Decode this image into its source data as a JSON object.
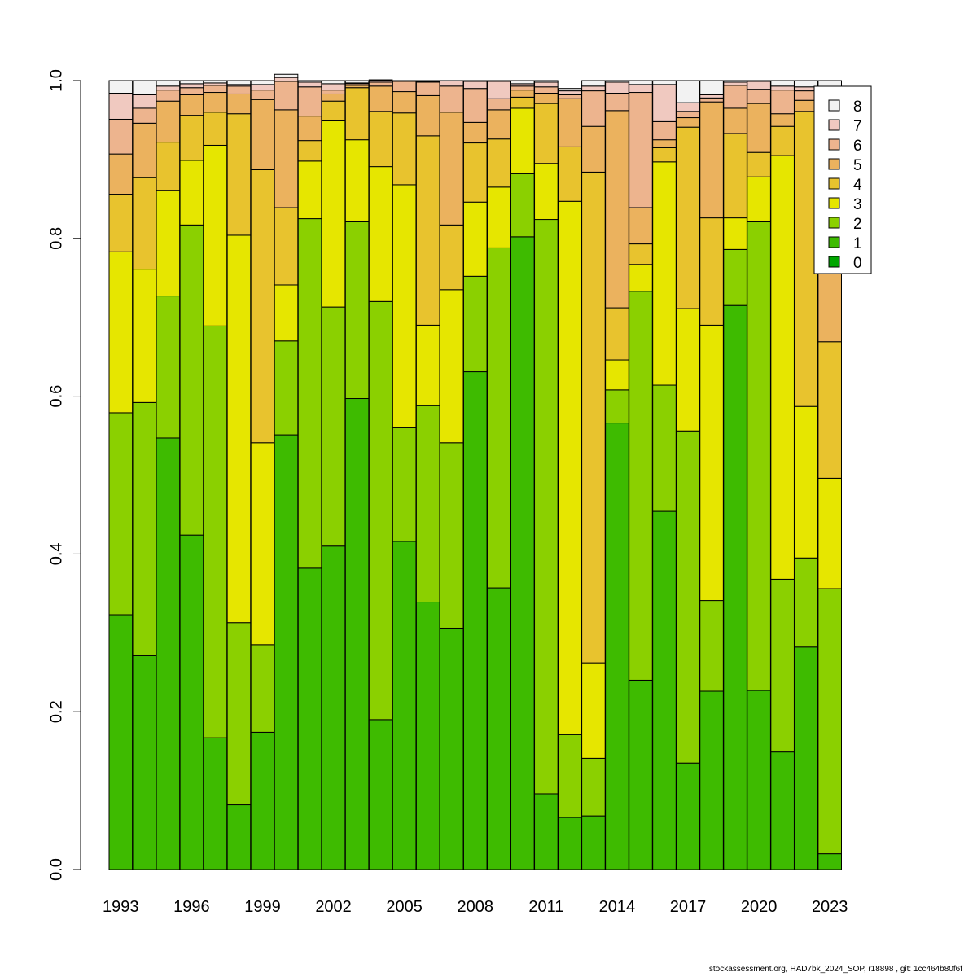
{
  "chart_data": {
    "type": "bar",
    "stacked": true,
    "x": [
      1993,
      1994,
      1995,
      1996,
      1997,
      1998,
      1999,
      2000,
      2001,
      2002,
      2003,
      2004,
      2005,
      2006,
      2007,
      2008,
      2009,
      2010,
      2011,
      2012,
      2013,
      2014,
      2015,
      2016,
      2017,
      2018,
      2019,
      2020,
      2021,
      2022,
      2023
    ],
    "x_tick_labels": [
      "1993",
      "1996",
      "1999",
      "2002",
      "2005",
      "2008",
      "2011",
      "2014",
      "2017",
      "2020",
      "2023"
    ],
    "ylim": [
      0,
      1
    ],
    "y_tick_labels": [
      "0.0",
      "0.2",
      "0.4",
      "0.6",
      "0.8",
      "1.0"
    ],
    "grid": false,
    "legend_position": "top-right",
    "series": [
      {
        "name": "0",
        "color": "#00A600",
        "values": [
          0,
          0,
          0,
          0,
          0,
          0,
          0,
          0,
          0,
          0,
          0,
          0,
          0,
          0,
          0,
          0,
          0,
          0,
          0,
          0,
          0,
          0,
          0,
          0,
          0,
          0,
          0,
          0,
          0,
          0,
          0
        ]
      },
      {
        "name": "1",
        "color": "#3EBB00",
        "values": [
          0.323,
          0.271,
          0.547,
          0.424,
          0.167,
          0.082,
          0.174,
          0.551,
          0.382,
          0.41,
          0.597,
          0.19,
          0.416,
          0.339,
          0.306,
          0.631,
          0.357,
          0.802,
          0.096,
          0.066,
          0.068,
          0.566,
          0.24,
          0.454,
          0.135,
          0.226,
          0.715,
          0.227,
          0.149,
          0.282,
          0.02
        ]
      },
      {
        "name": "2",
        "color": "#8BD000",
        "values": [
          0.256,
          0.321,
          0.18,
          0.393,
          0.522,
          0.231,
          0.111,
          0.119,
          0.443,
          0.303,
          0.224,
          0.53,
          0.144,
          0.249,
          0.235,
          0.121,
          0.431,
          0.08,
          0.728,
          0.105,
          0.073,
          0.042,
          0.493,
          0.16,
          0.421,
          0.115,
          0.071,
          0.594,
          0.219,
          0.113,
          0.336
        ]
      },
      {
        "name": "3",
        "color": "#E6E600",
        "values": [
          0.204,
          0.169,
          0.134,
          0.082,
          0.229,
          0.491,
          0.256,
          0.071,
          0.073,
          0.236,
          0.104,
          0.171,
          0.308,
          0.102,
          0.194,
          0.094,
          0.077,
          0.083,
          0.071,
          0.676,
          0.121,
          0.038,
          0.034,
          0.283,
          0.155,
          0.349,
          0.04,
          0.057,
          0.537,
          0.192,
          0.14
        ]
      },
      {
        "name": "4",
        "color": "#E8C32E",
        "values": [
          0.073,
          0.116,
          0.061,
          0.057,
          0.042,
          0.154,
          0.346,
          0.098,
          0.026,
          0.025,
          0.066,
          0.07,
          0.091,
          0.24,
          0.082,
          0.075,
          0.061,
          0.014,
          0.076,
          0.069,
          0.622,
          0.066,
          0.026,
          0.018,
          0.23,
          0.136,
          0.107,
          0.031,
          0.037,
          0.374,
          0.173
        ]
      },
      {
        "name": "5",
        "color": "#EBB25E",
        "values": [
          0.051,
          0.069,
          0.052,
          0.026,
          0.025,
          0.025,
          0.089,
          0.124,
          0.031,
          0.009,
          0.003,
          0.032,
          0.027,
          0.051,
          0.143,
          0.026,
          0.037,
          0.009,
          0.013,
          0.061,
          0.058,
          0.25,
          0.046,
          0.01,
          0.012,
          0.147,
          0.032,
          0.062,
          0.016,
          0.014,
          0.179
        ]
      },
      {
        "name": "6",
        "color": "#EDB48E",
        "values": [
          0.044,
          0.019,
          0.014,
          0.009,
          0.009,
          0.01,
          0.012,
          0.036,
          0.037,
          0.005,
          0.002,
          0.005,
          0.013,
          0.017,
          0.033,
          0.043,
          0.014,
          0.005,
          0.008,
          0.005,
          0.045,
          0.022,
          0.146,
          0.023,
          0.008,
          0.005,
          0.029,
          0.018,
          0.03,
          0.012,
          0.045
        ]
      },
      {
        "name": "7",
        "color": "#F0C9C0",
        "values": [
          0.033,
          0.017,
          0.005,
          0.005,
          0.003,
          0.002,
          0.007,
          0.005,
          0.006,
          0.008,
          0.001,
          0.002,
          0.0,
          0.001,
          0.007,
          0.009,
          0.022,
          0.003,
          0.006,
          0.005,
          0.006,
          0.014,
          0.01,
          0.047,
          0.011,
          0.004,
          0.004,
          0.01,
          0.005,
          0.005,
          0.004
        ]
      },
      {
        "name": "8",
        "color": "#F2F2F2",
        "values": [
          0.016,
          0.018,
          0.007,
          0.004,
          0.003,
          0.005,
          0.005,
          0.004,
          0.002,
          0.004,
          0.003,
          0.001,
          0.001,
          0.001,
          0.0,
          0.001,
          0.001,
          0.004,
          0.002,
          0.003,
          0.007,
          0.002,
          0.005,
          0.005,
          0.028,
          0.018,
          0.002,
          0.001,
          0.007,
          0.008,
          0.103
        ]
      }
    ],
    "legend_order": [
      "8",
      "7",
      "6",
      "5",
      "4",
      "3",
      "2",
      "1",
      "0"
    ]
  },
  "footer_text": "stockassessment.org, HAD7bk_2024_SOP, r18898 , git: 1cc464b80f6f"
}
